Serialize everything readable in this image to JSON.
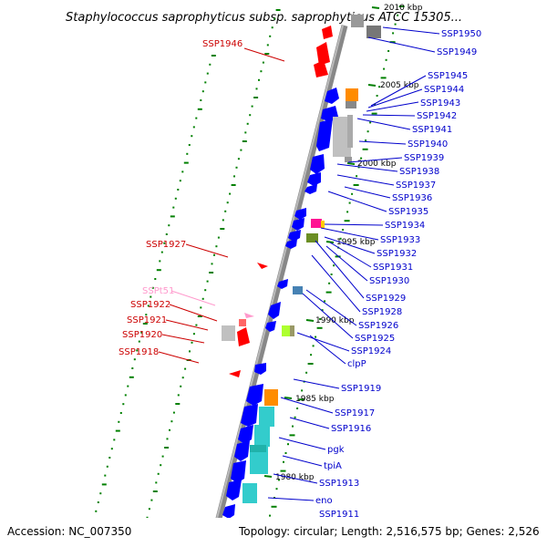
{
  "header": {
    "title": "Staphylococcus saprophyticus subsp. saprophyticus ATCC 15305..."
  },
  "footer": {
    "accession": "Accession: NC_007350",
    "topology": "Topology: circular; Length: 2,516,575 bp; Genes: 2,526"
  },
  "colors": {
    "forward_gene": "#0000ff",
    "reverse_gene": "#ff0000",
    "trna": "#ff99cc",
    "forward_label": "#0000cc",
    "reverse_label": "#cc0000",
    "backbone": "#888888",
    "gc_tick": "#008000",
    "cog_orange": "#ff8c00",
    "cog_teal": "#33cccc",
    "cog_gray": "#c0c0c0"
  },
  "kbp_marks": [
    "2010 kbp",
    "2005 kbp",
    "2000 kbp",
    "1995 kbp",
    "1990 kbp",
    "1985 kbp",
    "1980 kbp"
  ],
  "forward_labels": [
    "SSP1950",
    "SSP1949",
    "SSP1945",
    "SSP1944",
    "SSP1943",
    "SSP1942",
    "SSP1941",
    "SSP1940",
    "SSP1939",
    "SSP1938",
    "SSP1937",
    "SSP1936",
    "SSP1935",
    "SSP1934",
    "SSP1933",
    "SSP1932",
    "SSP1931",
    "SSP1930",
    "SSP1929",
    "SSP1928",
    "SSP1926",
    "SSP1925",
    "SSP1924",
    "clpP",
    "SSP1919",
    "SSP1917",
    "SSP1916",
    "pgk",
    "tpiA",
    "SSP1913",
    "eno",
    "SSP1911"
  ],
  "reverse_labels": [
    "SSP1946",
    "SSP1927",
    "SSPt51",
    "SSP1922",
    "SSP1921",
    "SSP1920",
    "SSP1918"
  ]
}
